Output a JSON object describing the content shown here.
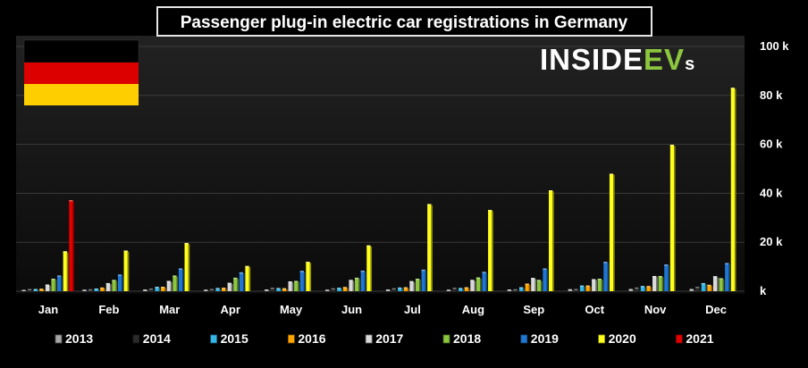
{
  "chart_data": {
    "type": "bar",
    "title": "Passenger plug-in electric car registrations in Germany",
    "brand": {
      "prefix": "INSIDE",
      "ev": "EV",
      "suffix": "s"
    },
    "categories": [
      "Jan",
      "Feb",
      "Mar",
      "Apr",
      "May",
      "Jun",
      "Jul",
      "Aug",
      "Sep",
      "Oct",
      "Nov",
      "Dec"
    ],
    "ylim": [
      0,
      100000
    ],
    "yticks": [
      0,
      20000,
      40000,
      60000,
      80000,
      100000
    ],
    "ytick_labels": [
      "k",
      "20 k",
      "40 k",
      "60 k",
      "80 k",
      "100 k"
    ],
    "grid": true,
    "legend_position": "bottom",
    "colors": {
      "background": "#000000",
      "plot_area": "#161616",
      "grid": "#3a3a3a",
      "title_bg": "#000000",
      "title_border": "#e6e6e6",
      "text": "#ffffff",
      "ev_green": "#8cc63f",
      "flag": [
        "#000000",
        "#dd0000",
        "#ffce00"
      ]
    },
    "series": [
      {
        "name": "2013",
        "color": "#a6a6a6",
        "values": [
          500,
          600,
          700,
          600,
          700,
          600,
          700,
          600,
          700,
          800,
          900,
          900
        ]
      },
      {
        "name": "2014",
        "color": "#2b2b2b",
        "values": [
          900,
          800,
          1100,
          900,
          1400,
          1200,
          1200,
          1400,
          800,
          900,
          1500,
          1800
        ]
      },
      {
        "name": "2015",
        "color": "#33b5e5",
        "values": [
          900,
          1100,
          1800,
          1300,
          1300,
          1400,
          1500,
          1300,
          1600,
          2300,
          2100,
          3300
        ]
      },
      {
        "name": "2016",
        "color": "#ffa500",
        "values": [
          1000,
          1500,
          1800,
          1400,
          1200,
          1700,
          1600,
          1600,
          3100,
          2300,
          2100,
          2600
        ]
      },
      {
        "name": "2017",
        "color": "#d9d9d9",
        "values": [
          2700,
          3300,
          4200,
          3400,
          4000,
          4600,
          4100,
          4600,
          5400,
          4900,
          6200,
          6100
        ]
      },
      {
        "name": "2018",
        "color": "#8cc63f",
        "values": [
          5100,
          4600,
          6400,
          5500,
          4200,
          5500,
          5100,
          5600,
          4600,
          5100,
          6200,
          5300
        ]
      },
      {
        "name": "2019",
        "color": "#1f77d4",
        "values": [
          6400,
          6800,
          9300,
          7700,
          8300,
          8400,
          8800,
          7900,
          9300,
          12000,
          10900,
          11500
        ]
      },
      {
        "name": "2020",
        "color": "#ffff1a",
        "values": [
          16300,
          16600,
          19700,
          10300,
          12000,
          18700,
          35600,
          33200,
          41200,
          48000,
          59800,
          83100
        ]
      },
      {
        "name": "2021",
        "color": "#e00000",
        "values": [
          37200,
          null,
          null,
          null,
          null,
          null,
          null,
          null,
          null,
          null,
          null,
          null
        ]
      }
    ]
  }
}
